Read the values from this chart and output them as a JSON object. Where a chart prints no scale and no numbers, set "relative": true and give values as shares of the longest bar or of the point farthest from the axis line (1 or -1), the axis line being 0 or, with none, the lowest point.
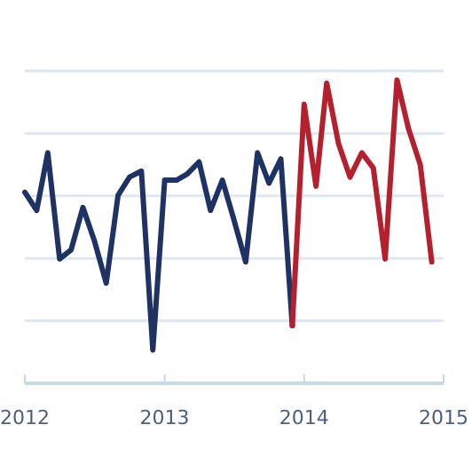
{
  "chart_data": {
    "type": "line",
    "relative": true,
    "grid": true,
    "xlim": [
      "2012-01",
      "2015-01"
    ],
    "xticks": [
      {
        "value": "2012",
        "label": "2012"
      },
      {
        "value": "2013",
        "label": "2013"
      },
      {
        "value": "2014",
        "label": "2014"
      },
      {
        "value": "2015",
        "label": "2015"
      }
    ],
    "series": [
      {
        "color": "#1f3264",
        "x": [
          "2012-01",
          "2012-02",
          "2012-03",
          "2012-04",
          "2012-05",
          "2012-06",
          "2012-07",
          "2012-08",
          "2012-09",
          "2012-10",
          "2012-11",
          "2012-12",
          "2013-01",
          "2013-02",
          "2013-03",
          "2013-04",
          "2013-05",
          "2013-06",
          "2013-07",
          "2013-08",
          "2013-09",
          "2013-10",
          "2013-11",
          "2013-12"
        ],
        "values": [
          0.63,
          0.57,
          0.76,
          0.41,
          0.44,
          0.58,
          0.47,
          0.33,
          0.62,
          0.68,
          0.7,
          0.11,
          0.67,
          0.67,
          0.69,
          0.73,
          0.57,
          0.67,
          0.54,
          0.4,
          0.76,
          0.66,
          0.74,
          0.19
        ]
      },
      {
        "color": "#b5202e",
        "x": [
          "2013-12",
          "2014-01",
          "2014-02",
          "2014-03",
          "2014-04",
          "2014-05",
          "2014-06",
          "2014-07",
          "2014-08",
          "2014-09",
          "2014-10",
          "2014-11",
          "2014-12"
        ],
        "values": [
          0.19,
          0.92,
          0.65,
          0.99,
          0.79,
          0.68,
          0.76,
          0.71,
          0.41,
          1,
          0.84,
          0.72,
          0.4
        ]
      }
    ]
  }
}
